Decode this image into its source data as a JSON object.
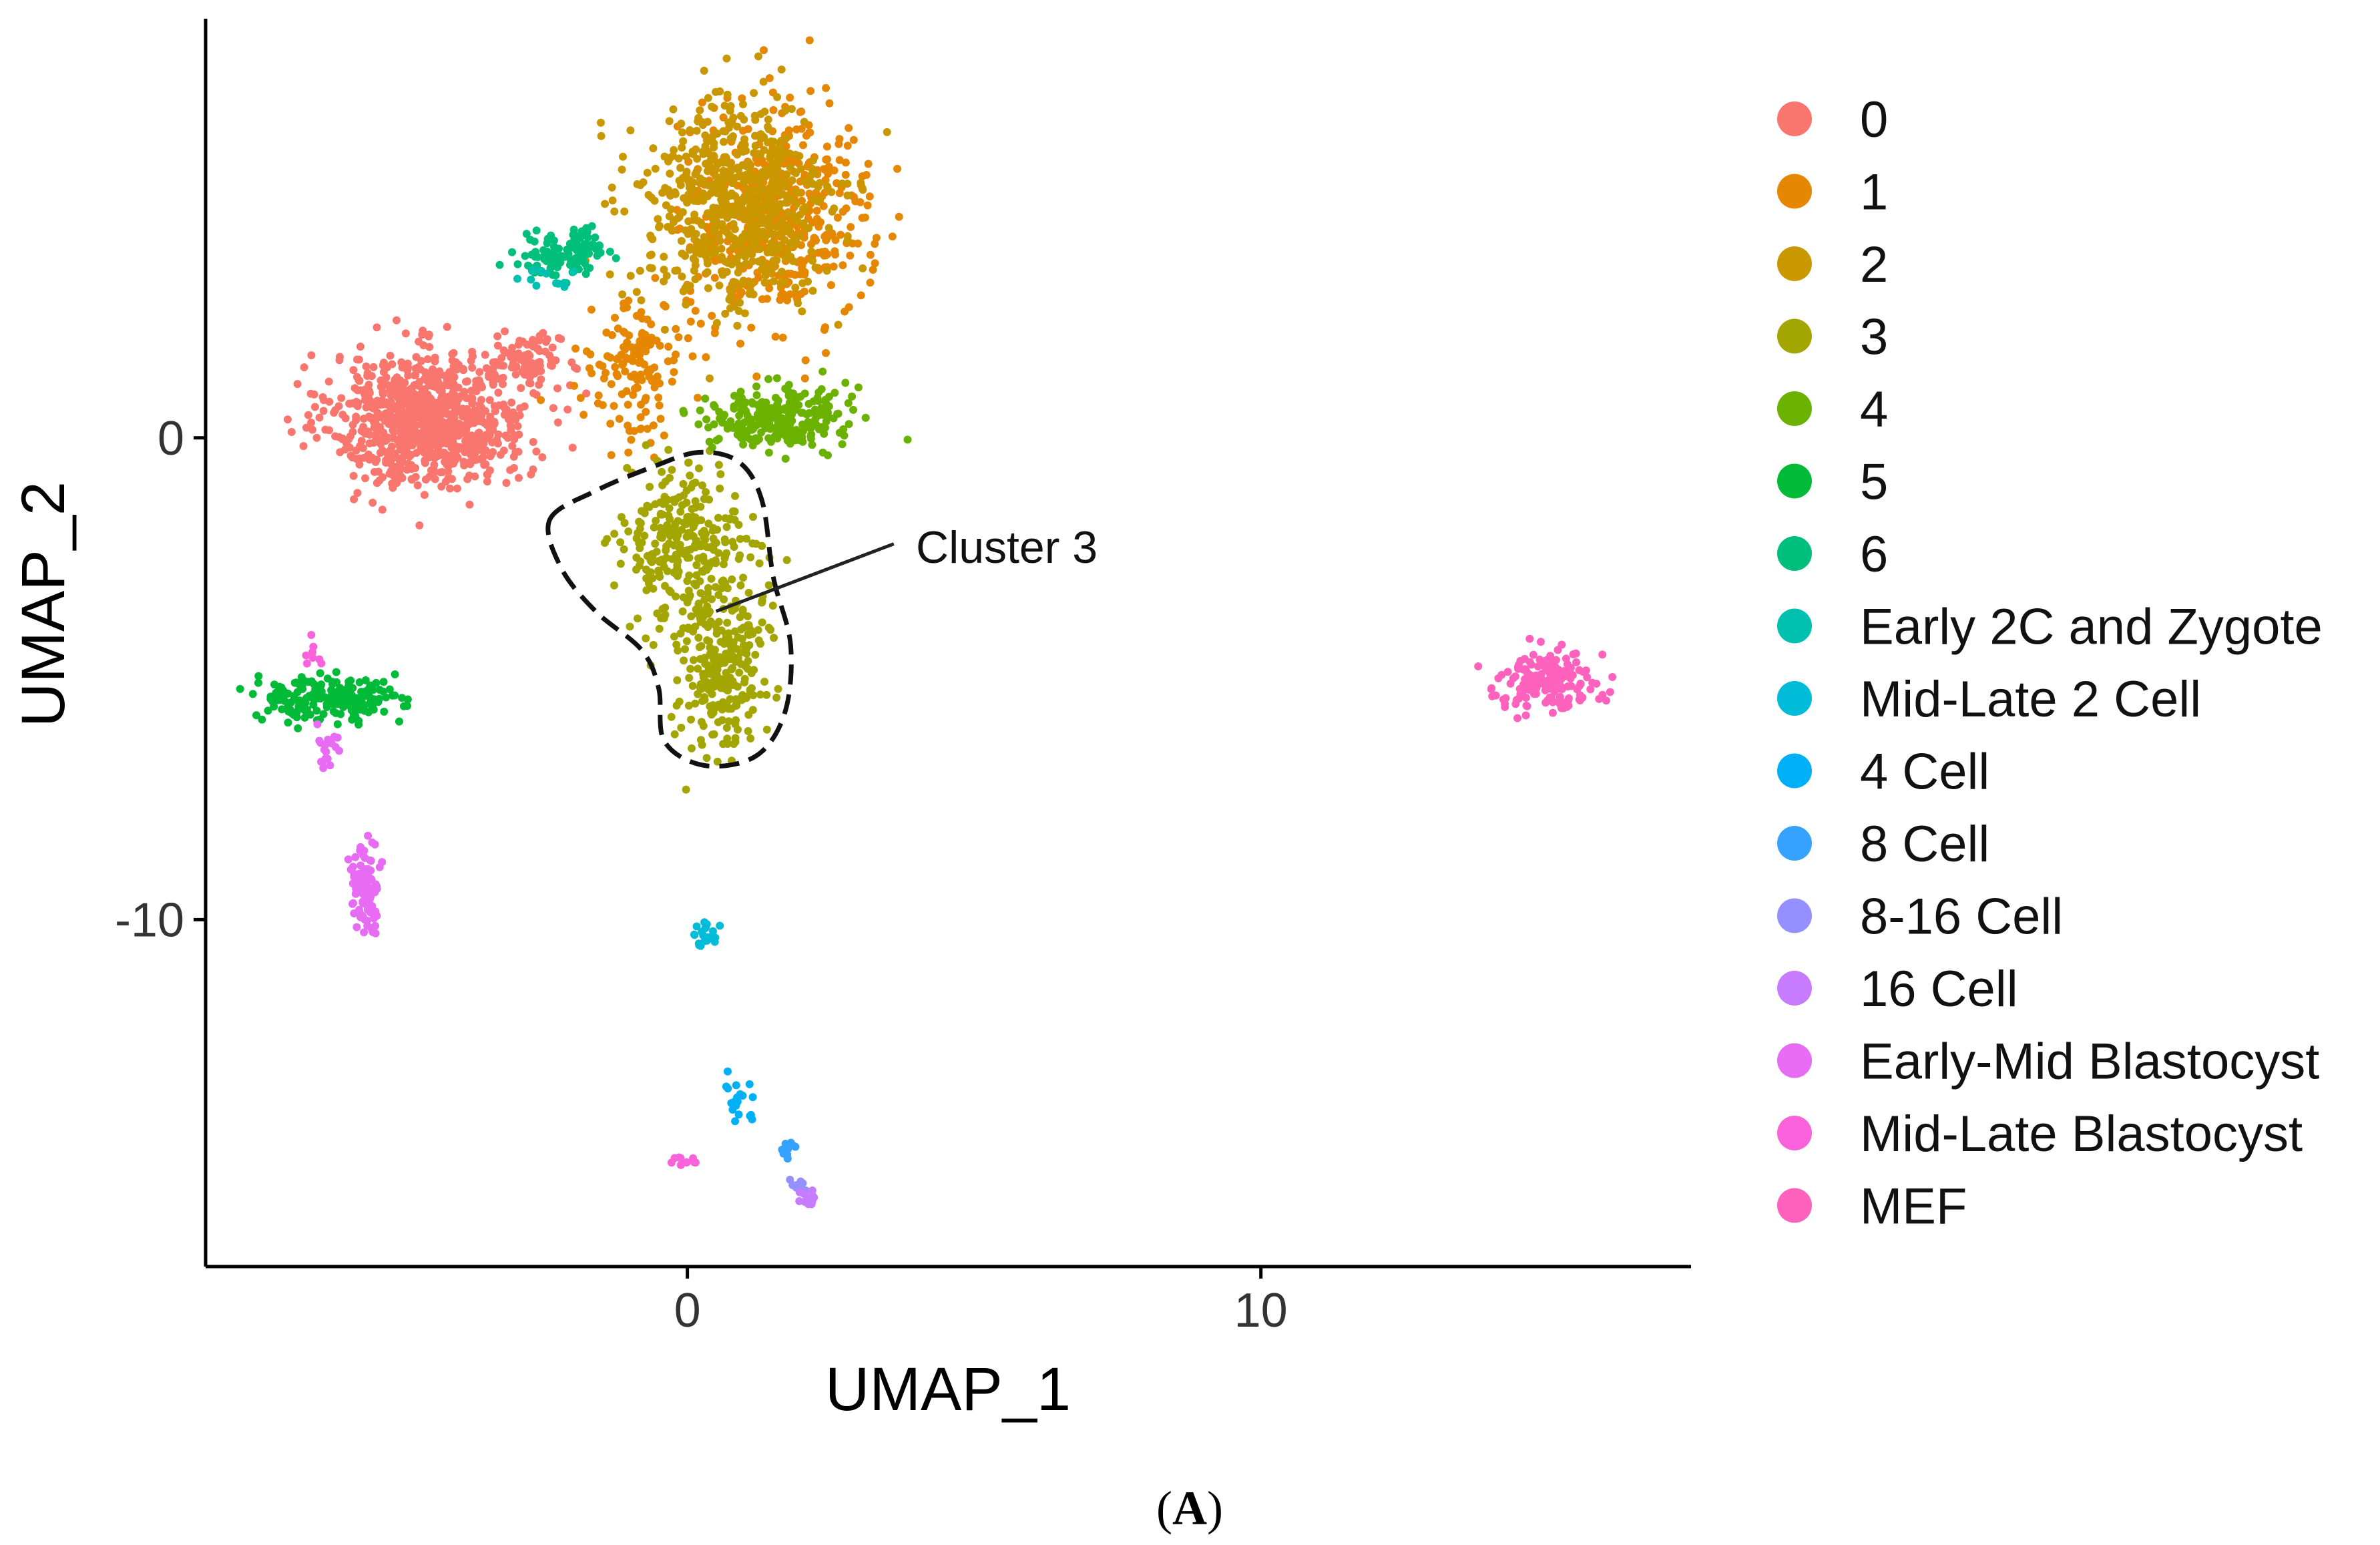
{
  "chart_data": {
    "type": "scatter",
    "title": "",
    "xlabel": "UMAP_1",
    "ylabel": "UMAP_2",
    "xlim": [
      -8.4,
      17.5
    ],
    "ylim": [
      -17.2,
      8.7
    ],
    "x_ticks": [
      0,
      10
    ],
    "y_ticks": [
      0,
      -10
    ],
    "x_tick_labels": [
      "0",
      "10"
    ],
    "y_tick_labels": [
      "0",
      "-10"
    ],
    "legend_position": "right",
    "annotation": {
      "text": "Cluster 3",
      "outline_points": [
        [
          -2.4,
          -1.7
        ],
        [
          -1.6,
          -1.1
        ],
        [
          -0.6,
          -0.6
        ],
        [
          0.2,
          -0.3
        ],
        [
          0.9,
          -0.5
        ],
        [
          1.3,
          -1.3
        ],
        [
          1.5,
          -2.9
        ],
        [
          1.8,
          -4.3
        ],
        [
          1.7,
          -5.7
        ],
        [
          1.2,
          -6.6
        ],
        [
          0.3,
          -6.8
        ],
        [
          -0.4,
          -6.3
        ],
        [
          -0.5,
          -5.2
        ],
        [
          -0.8,
          -4.4
        ],
        [
          -1.6,
          -3.6
        ],
        [
          -2.2,
          -2.7
        ]
      ],
      "pointer_from": [
        3.6,
        -2.2
      ],
      "pointer_to": [
        0.5,
        -3.6
      ]
    },
    "series": [
      {
        "name": "0",
        "color": "#F8766D",
        "clusters": [
          {
            "center": [
              -4.5,
              0.4
            ],
            "spread": [
              1.7,
              1.35
            ],
            "n": 900
          },
          {
            "center": [
              -2.8,
              1.6
            ],
            "spread": [
              0.6,
              0.5
            ],
            "n": 90
          }
        ]
      },
      {
        "name": "1",
        "color": "#E58700",
        "clusters": [
          {
            "center": [
              1.6,
              4.6
            ],
            "spread": [
              1.6,
              2.2
            ],
            "n": 480
          },
          {
            "center": [
              -0.9,
              1.4
            ],
            "spread": [
              0.8,
              1.4
            ],
            "n": 140
          }
        ]
      },
      {
        "name": "2",
        "color": "#C99800",
        "clusters": [
          {
            "center": [
              0.8,
              4.8
            ],
            "spread": [
              1.7,
              2.2
            ],
            "n": 620
          }
        ]
      },
      {
        "name": "3",
        "color": "#A3A500",
        "clusters": [
          {
            "center": [
              0.0,
              -2.2
            ],
            "spread": [
              1.1,
              1.6
            ],
            "n": 300
          },
          {
            "center": [
              0.6,
              -4.8
            ],
            "spread": [
              0.75,
              1.7
            ],
            "n": 260
          }
        ]
      },
      {
        "name": "4",
        "color": "#6BB100",
        "clusters": [
          {
            "center": [
              1.6,
              0.4
            ],
            "spread": [
              1.2,
              0.65
            ],
            "n": 240
          }
        ]
      },
      {
        "name": "5",
        "color": "#00BA38",
        "clusters": [
          {
            "center": [
              -6.3,
              -5.4
            ],
            "spread": [
              1.2,
              0.45
            ],
            "n": 200
          }
        ]
      },
      {
        "name": "6",
        "color": "#00BF7D",
        "clusters": [
          {
            "center": [
              -2.1,
              3.8
            ],
            "spread": [
              0.8,
              0.45
            ],
            "n": 110
          }
        ]
      },
      {
        "name": "Early 2C and Zygote",
        "color": "#00C0AF",
        "clusters": [
          {
            "center": [
              -2.4,
              3.3
            ],
            "spread": [
              0.6,
              0.35
            ],
            "n": 12
          }
        ]
      },
      {
        "name": "Mid-Late 2 Cell",
        "color": "#00BCD8",
        "clusters": [
          {
            "center": [
              0.3,
              -10.3
            ],
            "spread": [
              0.3,
              0.3
            ],
            "n": 22
          }
        ]
      },
      {
        "name": "4 Cell",
        "color": "#00B0F6",
        "clusters": [
          {
            "center": [
              0.9,
              -13.7
            ],
            "spread": [
              0.3,
              0.45
            ],
            "n": 20
          }
        ]
      },
      {
        "name": "8 Cell",
        "color": "#35A2FF",
        "clusters": [
          {
            "center": [
              1.8,
              -14.8
            ],
            "spread": [
              0.25,
              0.2
            ],
            "n": 12
          }
        ]
      },
      {
        "name": "8-16 Cell",
        "color": "#9590FF",
        "clusters": [
          {
            "center": [
              2.0,
              -15.5
            ],
            "spread": [
              0.15,
              0.25
            ],
            "n": 10
          }
        ]
      },
      {
        "name": "16 Cell",
        "color": "#C77CFF",
        "clusters": [
          {
            "center": [
              2.1,
              -15.8
            ],
            "spread": [
              0.15,
              0.2
            ],
            "n": 12
          }
        ]
      },
      {
        "name": "Early-Mid Blastocyst",
        "color": "#E76BF3",
        "clusters": [
          {
            "center": [
              -5.6,
              -9.3
            ],
            "spread": [
              0.25,
              0.8
            ],
            "n": 110
          },
          {
            "center": [
              -6.3,
              -6.4
            ],
            "spread": [
              0.2,
              0.5
            ],
            "n": 18
          }
        ]
      },
      {
        "name": "Mid-Late Blastocyst",
        "color": "#FA62DB",
        "clusters": [
          {
            "center": [
              -0.1,
              -15.0
            ],
            "spread": [
              0.3,
              0.12
            ],
            "n": 10
          },
          {
            "center": [
              -6.6,
              -4.4
            ],
            "spread": [
              0.3,
              0.5
            ],
            "n": 8
          }
        ]
      },
      {
        "name": "MEF",
        "color": "#FF62BC",
        "clusters": [
          {
            "center": [
              15.0,
              -5.0
            ],
            "spread": [
              0.85,
              0.6
            ],
            "n": 170
          }
        ]
      }
    ]
  },
  "panel_label": {
    "open": "(",
    "letter": "A",
    "close": ")"
  }
}
